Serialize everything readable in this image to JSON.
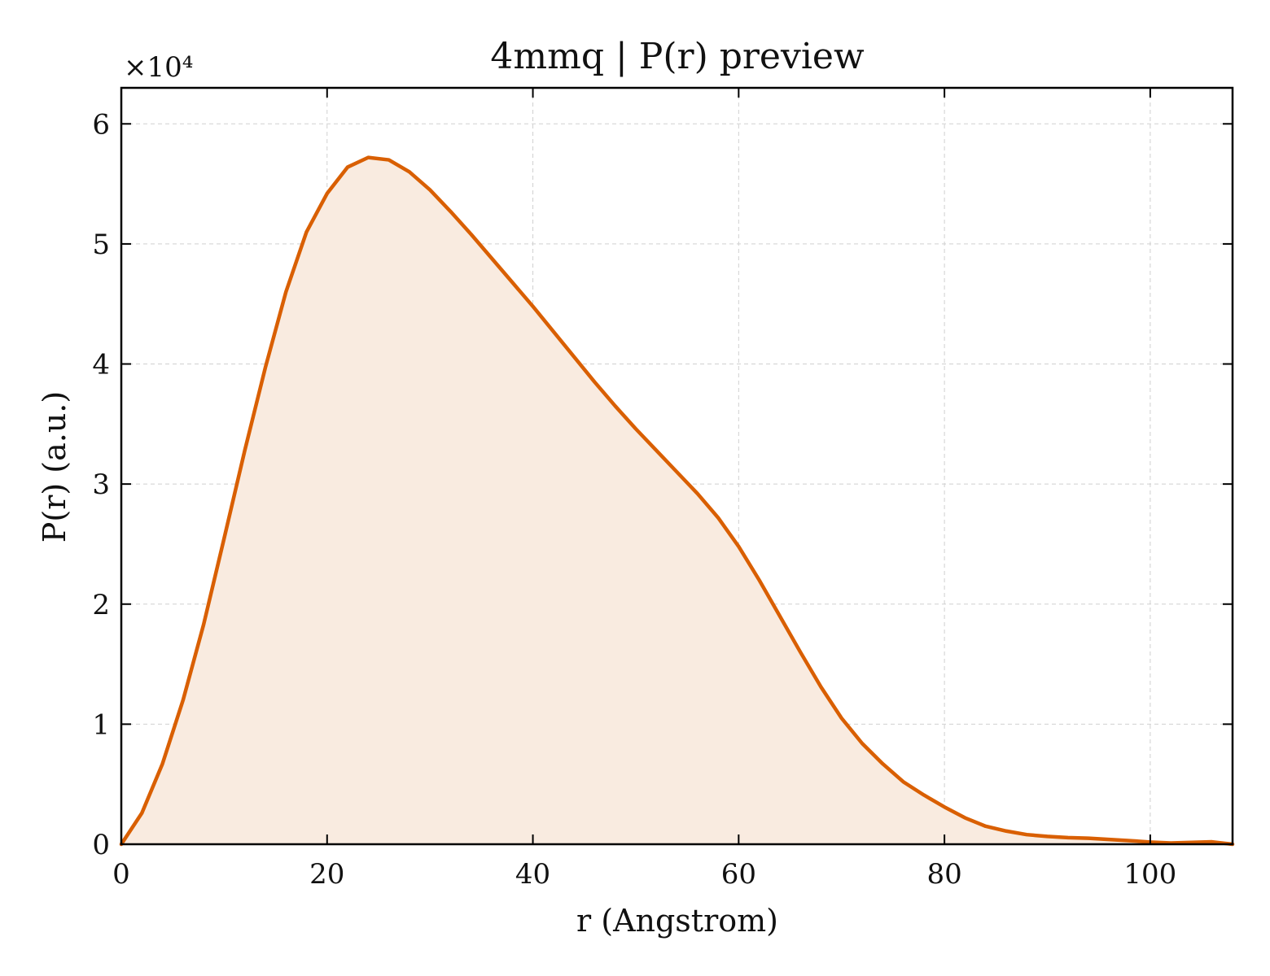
{
  "chart_data": {
    "type": "area",
    "title": "4mmq | P(r) preview",
    "xlabel": "r (Angstrom)",
    "ylabel": "P(r) (a.u.)",
    "y_multiplier": "×10⁴",
    "xlim": [
      0,
      108
    ],
    "ylim": [
      0,
      6.3
    ],
    "xticks": [
      0,
      20,
      40,
      60,
      80,
      100
    ],
    "yticks": [
      0,
      1,
      2,
      3,
      4,
      5,
      6
    ],
    "grid": true,
    "line_color": "#d95f02",
    "fill_color": "#f9ebe0",
    "series": [
      {
        "x": [
          0,
          2,
          4,
          6,
          8,
          10,
          12,
          14,
          16,
          18,
          20,
          22,
          24,
          26,
          28,
          30,
          32,
          34,
          36,
          38,
          40,
          42,
          44,
          46,
          48,
          50,
          52,
          54,
          56,
          58,
          60,
          62,
          64,
          66,
          68,
          70,
          72,
          74,
          76,
          78,
          80,
          82,
          84,
          86,
          88,
          90,
          92,
          94,
          96,
          98,
          100,
          102,
          104,
          106,
          108
        ],
        "y": [
          0.0,
          0.26,
          0.67,
          1.2,
          1.83,
          2.55,
          3.28,
          3.97,
          4.6,
          5.1,
          5.42,
          5.64,
          5.72,
          5.7,
          5.6,
          5.45,
          5.27,
          5.08,
          4.88,
          4.68,
          4.48,
          4.27,
          4.06,
          3.85,
          3.65,
          3.46,
          3.28,
          3.1,
          2.92,
          2.72,
          2.48,
          2.2,
          1.9,
          1.6,
          1.31,
          1.05,
          0.84,
          0.67,
          0.52,
          0.41,
          0.31,
          0.22,
          0.15,
          0.11,
          0.08,
          0.065,
          0.055,
          0.05,
          0.04,
          0.03,
          0.018,
          0.01,
          0.015,
          0.02,
          0.0
        ]
      }
    ]
  }
}
